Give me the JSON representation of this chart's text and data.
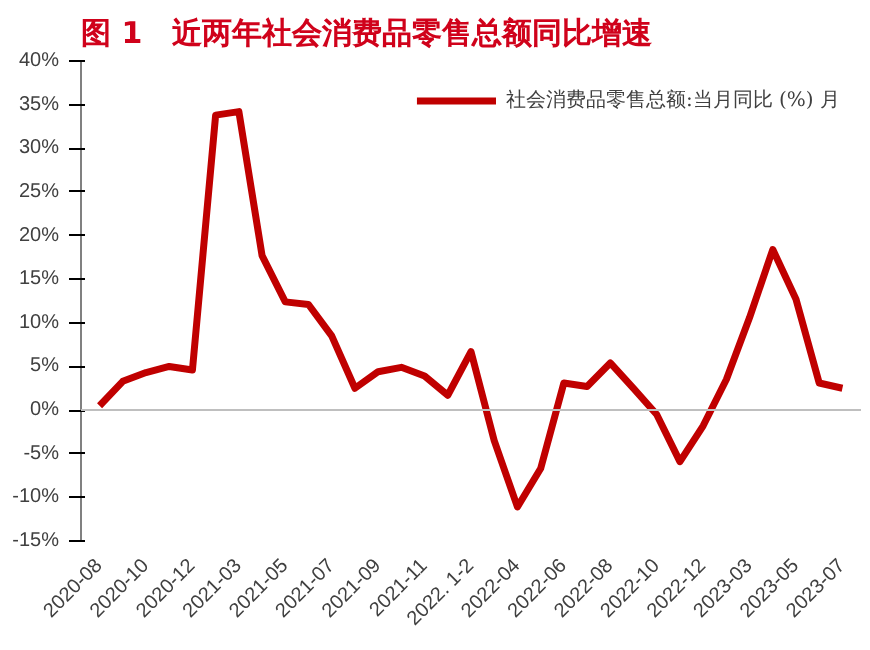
{
  "chart_data": {
    "type": "line",
    "title": "图 1　近两年社会消费品零售总额同比增速",
    "categories": [
      "2020-08",
      null,
      "2020-10",
      null,
      "2020-12",
      null,
      "2021-03",
      null,
      "2021-05",
      null,
      "2021-07",
      null,
      "2021-09",
      null,
      "2021-11",
      null,
      "2022. 1-2",
      null,
      "2022-04",
      null,
      "2022-06",
      null,
      "2022-08",
      null,
      "2022-10",
      null,
      "2022-12",
      null,
      "2023-03",
      null,
      "2023-05",
      null,
      "2023-07"
    ],
    "series": [
      {
        "name": "社会消费品零售总额:当月同比 (%) 月",
        "color": "#c00000",
        "values": [
          0.5,
          3.3,
          4.3,
          5.0,
          4.6,
          33.8,
          34.2,
          17.7,
          12.4,
          12.1,
          8.5,
          2.5,
          4.4,
          4.9,
          3.9,
          1.7,
          6.7,
          -3.5,
          -11.1,
          -6.7,
          3.1,
          2.7,
          5.4,
          2.5,
          -0.5,
          -5.9,
          -1.8,
          3.5,
          10.6,
          18.4,
          12.7,
          3.1,
          2.5
        ]
      }
    ],
    "ylim": [
      -15,
      40
    ],
    "yticks": [
      {
        "value": -15,
        "label": "-15%"
      },
      {
        "value": -10,
        "label": "-10%"
      },
      {
        "value": -5,
        "label": "-5%"
      },
      {
        "value": 0,
        "label": "0%"
      },
      {
        "value": 5,
        "label": "5%"
      },
      {
        "value": 10,
        "label": "10%"
      },
      {
        "value": 15,
        "label": "15%"
      },
      {
        "value": 20,
        "label": "20%"
      },
      {
        "value": 25,
        "label": "25%"
      },
      {
        "value": 30,
        "label": "30%"
      },
      {
        "value": 35,
        "label": "35%"
      },
      {
        "value": 40,
        "label": "40%"
      }
    ],
    "ref_lines": [
      {
        "axis": "y",
        "value": 0,
        "color": "#bfbfbf"
      }
    ],
    "legend": "top",
    "grid": false,
    "line_style": "solid"
  }
}
